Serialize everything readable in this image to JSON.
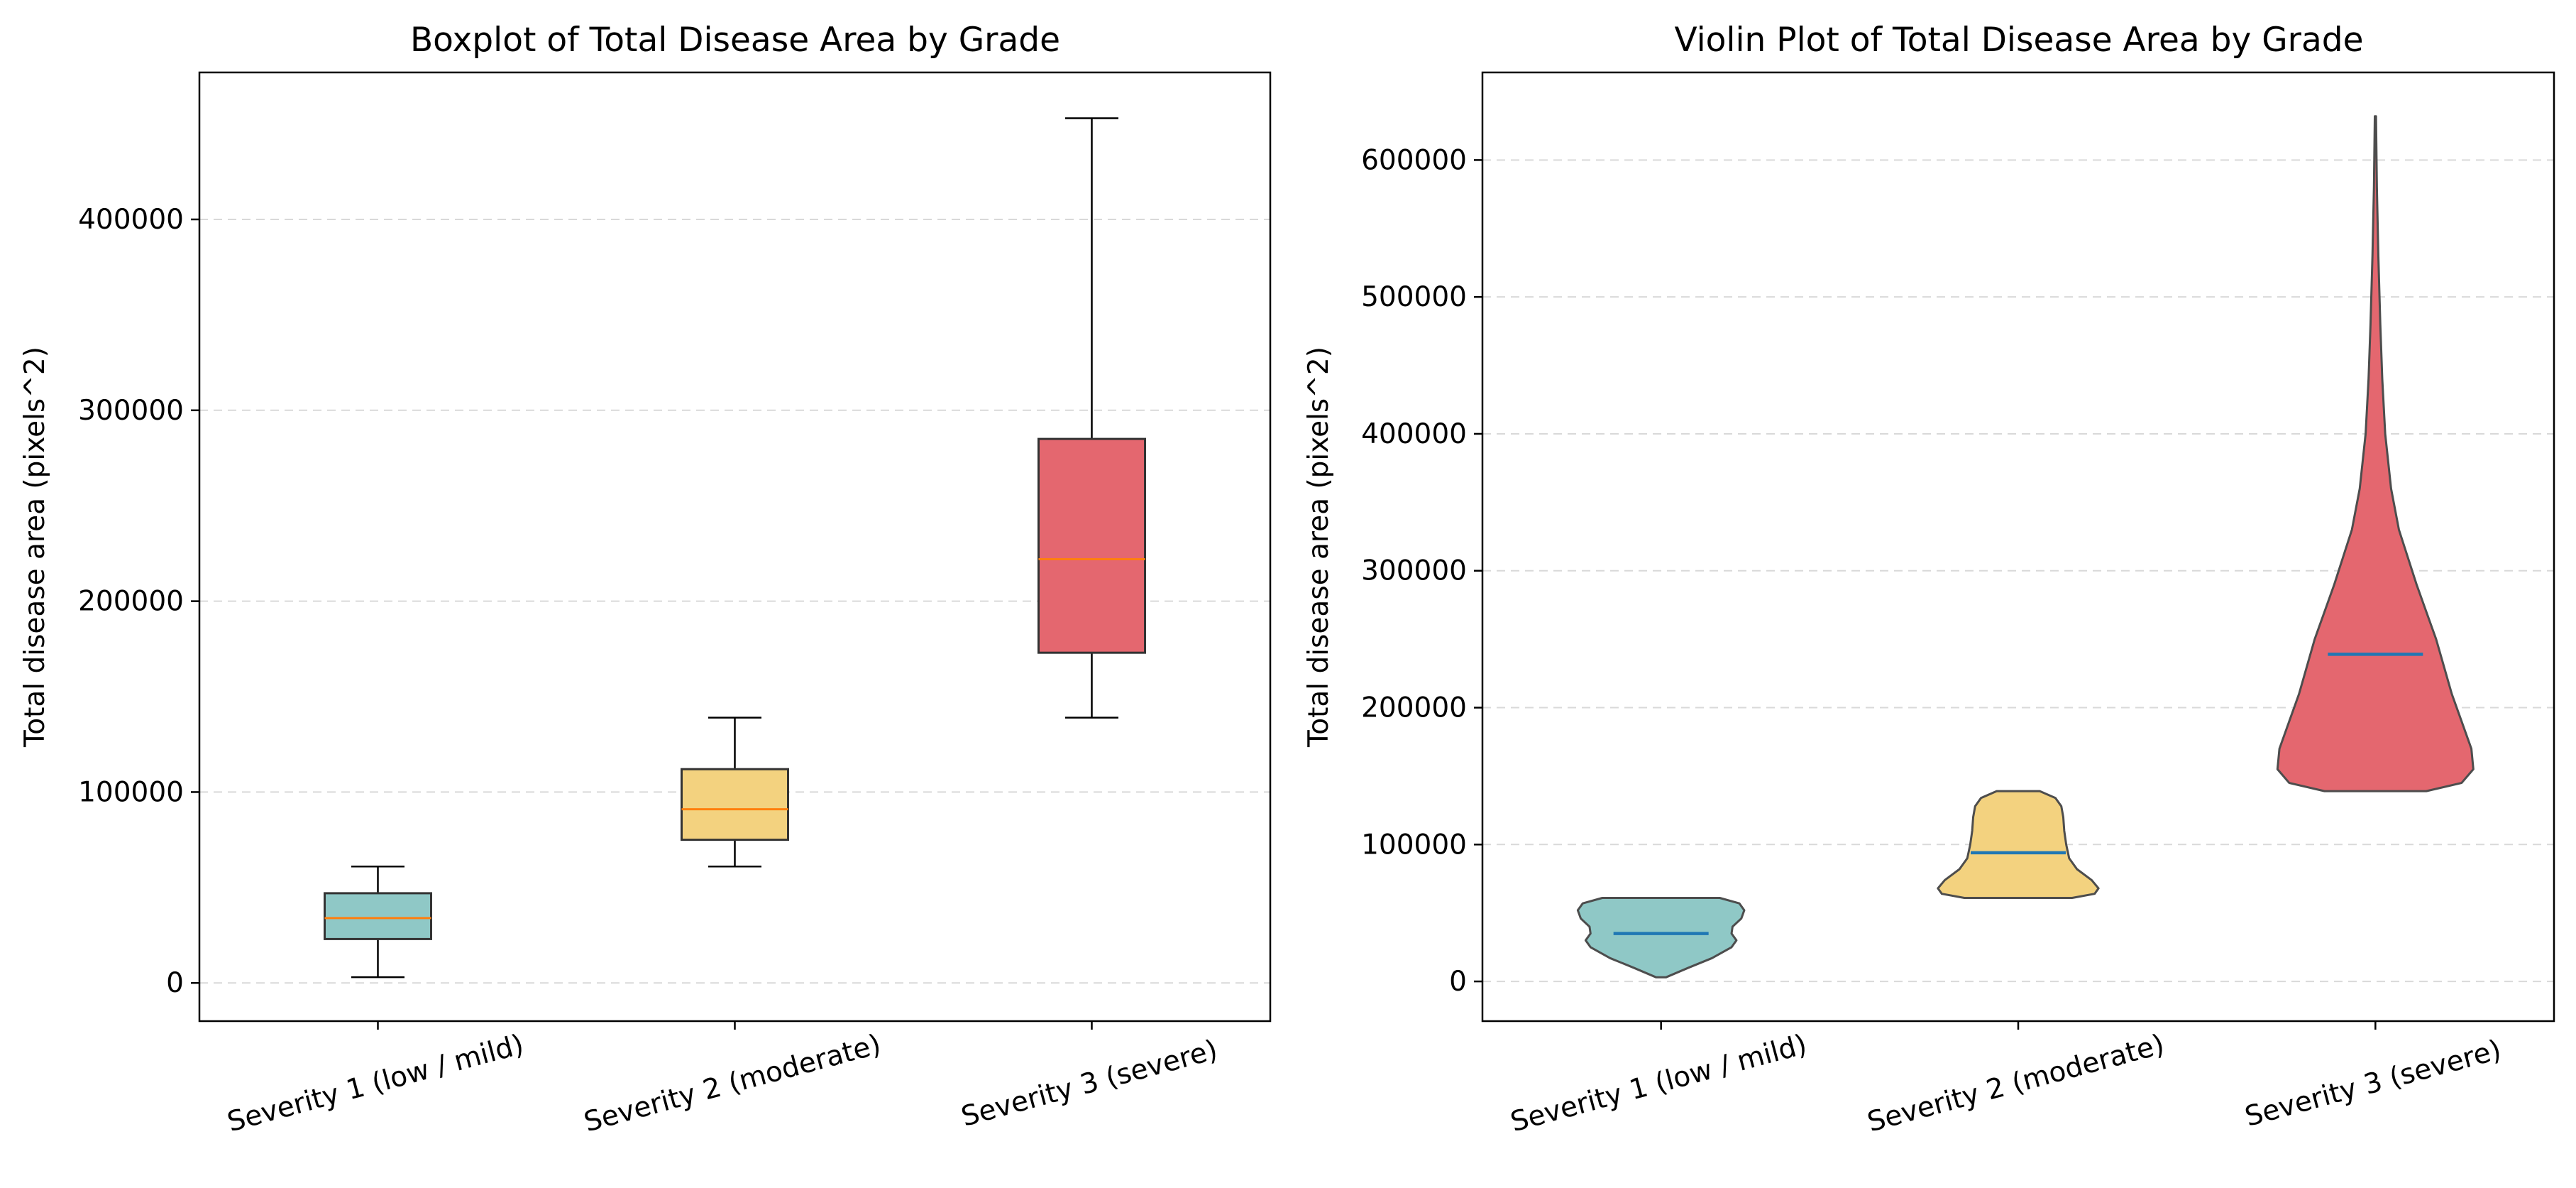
{
  "chart_data": [
    {
      "type": "box",
      "title": "Boxplot of Total Disease Area by Grade",
      "xlabel": "",
      "ylabel": "Total disease area (pixels^2)",
      "ylim": [
        -20000,
        477000
      ],
      "yticks": [
        0,
        100000,
        200000,
        300000,
        400000
      ],
      "ytick_labels": [
        "0",
        "100000",
        "200000",
        "300000",
        "400000"
      ],
      "grid": "y, dashed",
      "categories": [
        "Severity 1 (low / mild)",
        "Severity 2 (moderate)",
        "Severity 3 (severe)"
      ],
      "boxes": [
        {
          "whisker_low": 3000,
          "q1": 23000,
          "median": 34000,
          "q3": 47000,
          "whisker_high": 61000
        },
        {
          "whisker_low": 61000,
          "q1": 75000,
          "median": 91000,
          "q3": 112000,
          "whisker_high": 139000
        },
        {
          "whisker_low": 139000,
          "q1": 173000,
          "median": 222000,
          "q3": 285000,
          "whisker_high": 453000
        }
      ],
      "colors": [
        "#8fc8c6",
        "#f3d27f",
        "#e4676f"
      ],
      "median_color": "#ff7f0e"
    },
    {
      "type": "violin",
      "title": "Violin Plot of Total Disease Area by Grade",
      "xlabel": "",
      "ylabel": "Total disease area (pixels^2)",
      "ylim": [
        -29000,
        664000
      ],
      "yticks": [
        0,
        100000,
        200000,
        300000,
        400000,
        500000,
        600000
      ],
      "ytick_labels": [
        "0",
        "100000",
        "200000",
        "300000",
        "400000",
        "500000",
        "600000"
      ],
      "grid": "y, dashed",
      "categories": [
        "Severity 1 (low / mild)",
        "Severity 2 (moderate)",
        "Severity 3 (severe)"
      ],
      "violins": [
        {
          "median": 35000,
          "profile": [
            [
              3000,
              0.05
            ],
            [
              10000,
              0.28
            ],
            [
              17000,
              0.52
            ],
            [
              25000,
              0.72
            ],
            [
              30000,
              0.77
            ],
            [
              35000,
              0.72
            ],
            [
              40000,
              0.73
            ],
            [
              46000,
              0.82
            ],
            [
              52000,
              0.85
            ],
            [
              57000,
              0.8
            ],
            [
              61000,
              0.6
            ]
          ]
        },
        {
          "median": 94000,
          "profile": [
            [
              61000,
              0.55
            ],
            [
              64000,
              0.78
            ],
            [
              68000,
              0.82
            ],
            [
              74000,
              0.75
            ],
            [
              82000,
              0.6
            ],
            [
              90000,
              0.52
            ],
            [
              100000,
              0.49
            ],
            [
              110000,
              0.47
            ],
            [
              120000,
              0.46
            ],
            [
              128000,
              0.44
            ],
            [
              134000,
              0.38
            ],
            [
              139000,
              0.22
            ]
          ]
        },
        {
          "median": 239000,
          "profile": [
            [
              139000,
              0.52
            ],
            [
              145000,
              0.88
            ],
            [
              155000,
              1.0
            ],
            [
              170000,
              0.98
            ],
            [
              190000,
              0.88
            ],
            [
              210000,
              0.78
            ],
            [
              230000,
              0.7
            ],
            [
              250000,
              0.62
            ],
            [
              270000,
              0.52
            ],
            [
              290000,
              0.42
            ],
            [
              310000,
              0.33
            ],
            [
              330000,
              0.24
            ],
            [
              360000,
              0.16
            ],
            [
              400000,
              0.1
            ],
            [
              440000,
              0.07
            ],
            [
              480000,
              0.05
            ],
            [
              530000,
              0.03
            ],
            [
              580000,
              0.015
            ],
            [
              632000,
              0.006
            ]
          ]
        }
      ],
      "colors": [
        "#8fc8c6",
        "#f3d27f",
        "#e4676f"
      ],
      "median_color": "#1f77b4"
    }
  ]
}
